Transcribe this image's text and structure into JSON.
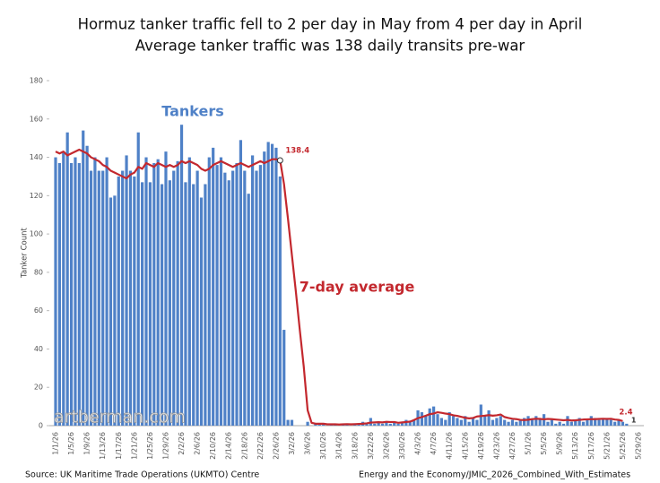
{
  "chart_data": {
    "type": "bar",
    "title": "Hormuz tanker traffic fell to 2 per day in May from 4 per day in April",
    "subtitle": "Average tanker traffic was 138 daily transits pre-war",
    "y_label": "Tanker Count",
    "watermark": "artberman.com",
    "source": "Source: UK Maritime Trade Operations (UKMTO) Centre",
    "credit": "Energy and the Economy/JMIC_2026_Combined_With_Estimates",
    "categories": [
      "1/1/26",
      null,
      null,
      null,
      "1/5/26",
      null,
      null,
      null,
      "1/9/26",
      null,
      null,
      null,
      "1/13/26",
      null,
      null,
      null,
      "1/17/26",
      null,
      null,
      null,
      "1/21/26",
      null,
      null,
      null,
      "1/25/26",
      null,
      null,
      null,
      "1/29/26",
      null,
      null,
      null,
      "2/2/26",
      null,
      null,
      null,
      "2/6/26",
      null,
      null,
      null,
      "2/10/26",
      null,
      null,
      null,
      "2/14/26",
      null,
      null,
      null,
      "2/18/26",
      null,
      null,
      null,
      "2/22/26",
      null,
      null,
      null,
      "2/26/26",
      null,
      null,
      null,
      "3/2/26",
      null,
      null,
      null,
      "3/6/26",
      null,
      null,
      null,
      "3/10/26",
      null,
      null,
      null,
      "3/14/26",
      null,
      null,
      null,
      "3/18/26",
      null,
      null,
      null,
      "3/22/26",
      null,
      null,
      null,
      "3/26/26",
      null,
      null,
      null,
      "3/30/26",
      null,
      null,
      null,
      "4/3/26",
      null,
      null,
      null,
      "4/7/26",
      null,
      null,
      null,
      "4/11/26",
      null,
      null,
      null,
      "4/15/26",
      null,
      null,
      null,
      "4/19/26",
      null,
      null,
      null,
      "4/23/26",
      null,
      null,
      null,
      "4/27/26",
      null,
      null,
      null,
      "5/1/26",
      null,
      null,
      null,
      "5/5/26",
      null,
      null,
      null,
      "5/9/26",
      null,
      null,
      null,
      "5/13/26",
      null,
      null,
      null,
      "5/17/26",
      null,
      null,
      null,
      "5/21/26",
      null,
      null,
      null,
      "5/25/26",
      null,
      null,
      null,
      "5/29/26"
    ],
    "series": [
      {
        "name": "Tankers",
        "color": "#4f81c7",
        "values": [
          140,
          137,
          143,
          153,
          137,
          140,
          137,
          154,
          146,
          133,
          140,
          133,
          133,
          140,
          119,
          120,
          130,
          133,
          141,
          133,
          130,
          153,
          127,
          140,
          127,
          137,
          139,
          126,
          143,
          128,
          133,
          138,
          157,
          127,
          140,
          126,
          133,
          119,
          126,
          140,
          145,
          136,
          140,
          132,
          128,
          133,
          137,
          149,
          133,
          121,
          141,
          133,
          136,
          143,
          148,
          147,
          145,
          130,
          50,
          3,
          3,
          0,
          0,
          0,
          2,
          0,
          1,
          1,
          1,
          0,
          1,
          1,
          0,
          1,
          1,
          0,
          1,
          1,
          2,
          1,
          4,
          1,
          2,
          1,
          2,
          1,
          2,
          1,
          2,
          3,
          2,
          3,
          8,
          7,
          5,
          9,
          10,
          6,
          4,
          3,
          7,
          5,
          4,
          3,
          5,
          2,
          4,
          3,
          11,
          5,
          8,
          3,
          4,
          5,
          3,
          2,
          3,
          2,
          3,
          4,
          5,
          3,
          5,
          4,
          6,
          2,
          3,
          1,
          2,
          1,
          5,
          2,
          3,
          4,
          2,
          3,
          5,
          4,
          3,
          4,
          4,
          3,
          2,
          3,
          2,
          1,
          null,
          null,
          null
        ]
      },
      {
        "name": "7-day average",
        "type": "line",
        "color": "#c3282e",
        "values": [
          143,
          142,
          143,
          141,
          142,
          143,
          144,
          143,
          142,
          140,
          139,
          138,
          136,
          135,
          133,
          132,
          131,
          130,
          129,
          131,
          132,
          135,
          134,
          137,
          136,
          135,
          137,
          136,
          135,
          136,
          135,
          136,
          138,
          137,
          138,
          137,
          136,
          134,
          133,
          134,
          136,
          137,
          138,
          137,
          136,
          135,
          136,
          137,
          136,
          135,
          136,
          137,
          138,
          137,
          138,
          139,
          139,
          138.4,
          126,
          108,
          89,
          70,
          50,
          31,
          8,
          1.5,
          1,
          1,
          1,
          0.7,
          0.7,
          0.7,
          0.6,
          0.7,
          0.8,
          0.7,
          0.8,
          0.9,
          1,
          1.2,
          1.6,
          1.7,
          1.8,
          1.7,
          2,
          1.9,
          1.9,
          1.5,
          1.7,
          1.9,
          2.1,
          2.9,
          3.9,
          4.5,
          5.2,
          6,
          6.3,
          7,
          6.7,
          6.3,
          6,
          5.4,
          5.1,
          4.6,
          4.1,
          3.8,
          4,
          4.8,
          5,
          5.2,
          5.5,
          5.2,
          5.4,
          5.8,
          4.5,
          4,
          3.6,
          3.4,
          3,
          2.9,
          3.1,
          3.4,
          3.6,
          3.5,
          3.3,
          3.5,
          3.4,
          3.2,
          3,
          2.8,
          3,
          2.7,
          2.8,
          3,
          3.2,
          3.3,
          3.4,
          3.4,
          3.5,
          3.6,
          3.5,
          3.6,
          3.2,
          3.0,
          2.4,
          null,
          null,
          null,
          null
        ]
      }
    ],
    "ylim": [
      0,
      180
    ],
    "yticks": [
      0,
      20,
      40,
      60,
      80,
      100,
      120,
      140,
      160,
      180
    ]
  }
}
